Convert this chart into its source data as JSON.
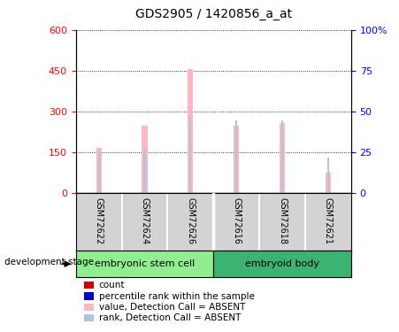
{
  "title": "GDS2905 / 1420856_a_at",
  "samples": [
    "GSM72622",
    "GSM72624",
    "GSM72626",
    "GSM72616",
    "GSM72618",
    "GSM72621"
  ],
  "group1_label": "embryonic stem cell",
  "group2_label": "embryoid body",
  "group1_color": "#90EE90",
  "group2_color": "#3CB371",
  "value_absent": [
    165,
    245,
    455,
    245,
    255,
    75
  ],
  "rank_absent": [
    152,
    157,
    283,
    265,
    267,
    130
  ],
  "ylim_left": [
    0,
    600
  ],
  "ylim_right": [
    0,
    100
  ],
  "yticks_left": [
    0,
    150,
    300,
    450,
    600
  ],
  "ytick_labels_left": [
    "0",
    "150",
    "300",
    "450",
    "600"
  ],
  "yticks_right": [
    0,
    25,
    50,
    75,
    100
  ],
  "ytick_labels_right": [
    "0",
    "25",
    "50",
    "75",
    "100%"
  ],
  "value_bar_width": 0.12,
  "rank_bar_width": 0.04,
  "value_absent_color": "#FFB6C1",
  "rank_absent_color": "#B0C4DE",
  "count_color": "#CC0000",
  "percentile_color": "#0000CC",
  "label_area_color": "#D3D3D3",
  "development_stage_label": "development stage",
  "legend_items": [
    {
      "color": "#CC0000",
      "label": "count"
    },
    {
      "color": "#0000CC",
      "label": "percentile rank within the sample"
    },
    {
      "color": "#FFB6C1",
      "label": "value, Detection Call = ABSENT"
    },
    {
      "color": "#B0C4DE",
      "label": "rank, Detection Call = ABSENT"
    }
  ]
}
